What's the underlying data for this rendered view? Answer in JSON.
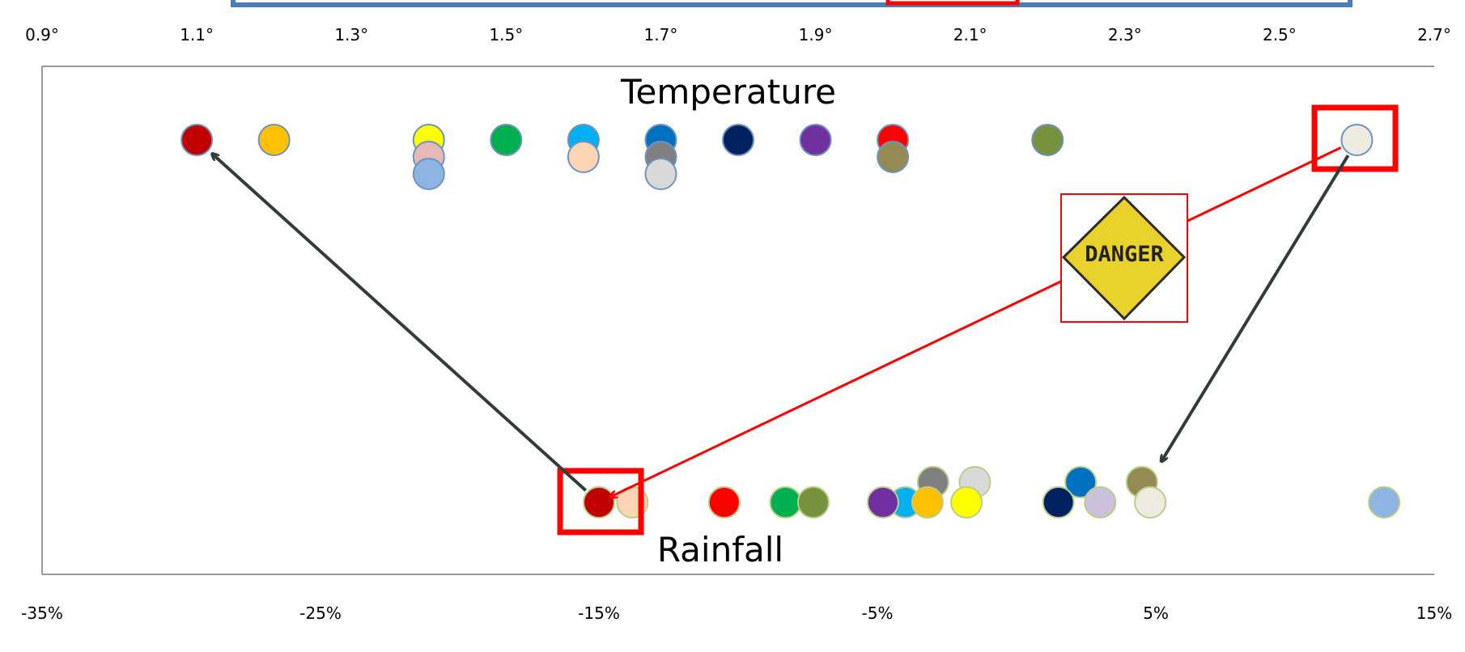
{
  "chart_data": {
    "type": "scatter",
    "top_axis": {
      "ticks": [
        "0.9°",
        "1.1°",
        "1.3°",
        "1.5°",
        "1.7°",
        "1.9°",
        "2.1°",
        "2.3°",
        "2.5°",
        "2.7°"
      ],
      "range": [
        0.9,
        2.7
      ]
    },
    "bottom_axis": {
      "ticks": [
        "-35%",
        "-25%",
        "-15%",
        "-5%",
        "5%",
        "15%"
      ],
      "range": [
        -35,
        15
      ]
    },
    "series": [
      {
        "name": "Temperature",
        "unit": "°",
        "points": [
          {
            "x": 1.1,
            "stack": 0,
            "color": "#c00000"
          },
          {
            "x": 1.2,
            "stack": 0,
            "color": "#ffc000"
          },
          {
            "x": 1.4,
            "stack": 0,
            "color": "#ffff00"
          },
          {
            "x": 1.4,
            "stack": 1,
            "color": "#e6b9b8"
          },
          {
            "x": 1.4,
            "stack": 2,
            "color": "#8db4e2"
          },
          {
            "x": 1.5,
            "stack": 0,
            "color": "#00b050"
          },
          {
            "x": 1.6,
            "stack": 0,
            "color": "#00b0f0"
          },
          {
            "x": 1.6,
            "stack": 1,
            "color": "#fcd5b4"
          },
          {
            "x": 1.7,
            "stack": 0,
            "color": "#0070c0"
          },
          {
            "x": 1.7,
            "stack": 1,
            "color": "#808080"
          },
          {
            "x": 1.7,
            "stack": 2,
            "color": "#d9d9d9"
          },
          {
            "x": 1.8,
            "stack": 0,
            "color": "#002060"
          },
          {
            "x": 1.9,
            "stack": 0,
            "color": "#7030a0"
          },
          {
            "x": 2.0,
            "stack": 0,
            "color": "#ff0000"
          },
          {
            "x": 2.0,
            "stack": 1,
            "color": "#948a54"
          },
          {
            "x": 2.2,
            "stack": 0,
            "color": "#76923c"
          },
          {
            "x": 2.6,
            "stack": 0,
            "color": "#eeece1"
          }
        ]
      },
      {
        "name": "Rainfall",
        "unit": "%",
        "points": [
          {
            "x": -15,
            "stack": 0,
            "color": "#c00000"
          },
          {
            "x": -13.8,
            "stack": 0,
            "color": "#fcd5b4"
          },
          {
            "x": -10.5,
            "stack": 0,
            "color": "#ff0000"
          },
          {
            "x": -8.3,
            "stack": 0,
            "color": "#00b050"
          },
          {
            "x": -7.3,
            "stack": 0,
            "color": "#76923c"
          },
          {
            "x": -4.0,
            "stack": 0,
            "color": "#00b0f0"
          },
          {
            "x": -3.2,
            "stack": 0,
            "color": "#ffc000"
          },
          {
            "x": -1.8,
            "stack": 0,
            "color": "#ffff00"
          },
          {
            "x": -4.8,
            "stack": 0,
            "color": "#7030a0"
          },
          {
            "x": -3.0,
            "stack": 1,
            "color": "#808080"
          },
          {
            "x": -1.5,
            "stack": 1,
            "color": "#d9d9d9"
          },
          {
            "x": 1.5,
            "stack": 0,
            "color": "#002060"
          },
          {
            "x": 3.0,
            "stack": 0,
            "color": "#ccc0da"
          },
          {
            "x": 2.3,
            "stack": 1,
            "color": "#0070c0"
          },
          {
            "x": 4.8,
            "stack": 0,
            "color": "#eeece1"
          },
          {
            "x": 4.5,
            "stack": 1,
            "color": "#948a54"
          },
          {
            "x": 13.2,
            "stack": 0,
            "color": "#8db4e2"
          }
        ]
      }
    ],
    "annotations": {
      "sign_text": "DANGER",
      "highlight_color": "#ff0000",
      "arrow_color": "#323c3a",
      "sign_color": "#e8d22b",
      "banner_color": "#4a7ebb",
      "arrows": [
        {
          "from_series": "Rainfall",
          "from_x": -15,
          "to_series": "Temperature",
          "to_x": 1.1,
          "color": "dark"
        },
        {
          "from_series": "Temperature",
          "from_x": 2.6,
          "to_series": "Rainfall",
          "to_x": 4.8,
          "color": "dark"
        },
        {
          "from_series": "Temperature",
          "from_x": 2.6,
          "to_series": "Rainfall",
          "to_x": -15,
          "color": "red"
        }
      ]
    }
  }
}
